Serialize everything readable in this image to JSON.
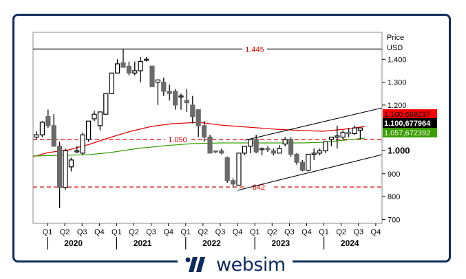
{
  "chart_data": {
    "type": "candlestick",
    "title": "",
    "ylabel": "Price",
    "yunit": "USD",
    "ylim": [
      0.68,
      1.5
    ],
    "y_ticks": [
      {
        "value": 1.4,
        "label": "1.400"
      },
      {
        "value": 1.3,
        "label": "1.300"
      },
      {
        "value": 1.2,
        "label": "1.200"
      },
      {
        "value": 1.0,
        "label": "1.000"
      },
      {
        "value": 0.9,
        "label": "900"
      },
      {
        "value": 0.8,
        "label": "800"
      },
      {
        "value": 0.7,
        "label": "700"
      }
    ],
    "x_quarter_labels": [
      "Q1",
      "Q2",
      "Q3",
      "Q4",
      "Q1",
      "Q2",
      "Q3",
      "Q4",
      "Q1",
      "Q2",
      "Q3",
      "Q4",
      "Q1",
      "Q2",
      "Q3",
      "Q4",
      "Q1",
      "Q2",
      "Q3",
      "Q4"
    ],
    "x_year_labels": [
      "2020",
      "2021",
      "2022",
      "2023",
      "2024"
    ],
    "horizontal_levels": [
      {
        "value": 1.445,
        "label": "1.445",
        "style": "solid",
        "color": "#000000"
      },
      {
        "value": 1.05,
        "label": "1.050",
        "style": "dashed",
        "color": "#e00000"
      },
      {
        "value": 0.842,
        "label": "842",
        "style": "dashed",
        "color": "#e00000"
      }
    ],
    "price_tags": [
      {
        "label": "1.100,689237",
        "bg": "#ff0000",
        "fg": "#000000",
        "value": 1.1007
      },
      {
        "label": "1.100,677964",
        "bg": "#000000",
        "fg": "#ffffff",
        "value": 1.1007
      },
      {
        "label": "1.057,672392",
        "bg": "#3a9e00",
        "fg": "#ffffff",
        "value": 1.0577
      }
    ],
    "series": [
      {
        "name": "Monthly OHLC",
        "type": "candlestick",
        "candles": [
          [
            1.06,
            1.085,
            1.05,
            1.07
          ],
          [
            1.07,
            1.13,
            1.06,
            1.125
          ],
          [
            1.15,
            1.18,
            1.1,
            1.11
          ],
          [
            1.11,
            1.16,
            1.02,
            1.02
          ],
          [
            1.02,
            1.04,
            0.75,
            0.84
          ],
          [
            0.84,
            1.01,
            0.83,
            1.0
          ],
          [
            0.93,
            0.97,
            0.91,
            0.96
          ],
          [
            1.0,
            1.02,
            0.99,
            1.0
          ],
          [
            0.99,
            1.08,
            0.98,
            1.07
          ],
          [
            1.05,
            1.13,
            1.04,
            1.13
          ],
          [
            1.14,
            1.175,
            1.13,
            1.16
          ],
          [
            1.11,
            1.16,
            1.09,
            1.17
          ],
          [
            1.16,
            1.21,
            1.16,
            1.25
          ],
          [
            1.25,
            1.29,
            1.25,
            1.34
          ],
          [
            1.34,
            1.4,
            1.34,
            1.38
          ],
          [
            1.385,
            1.445,
            1.38,
            1.365
          ],
          [
            1.37,
            1.39,
            1.33,
            1.34
          ],
          [
            1.34,
            1.39,
            1.33,
            1.35
          ],
          [
            1.35,
            1.41,
            1.3,
            1.39
          ],
          [
            1.4,
            1.41,
            1.39,
            1.4
          ],
          [
            1.37,
            1.37,
            1.28,
            1.28
          ],
          [
            1.3,
            1.31,
            1.2,
            1.31
          ],
          [
            1.3,
            1.32,
            1.24,
            1.26
          ],
          [
            1.26,
            1.29,
            1.22,
            1.25
          ],
          [
            1.26,
            1.27,
            1.18,
            1.2
          ],
          [
            1.24,
            1.25,
            1.18,
            1.24
          ],
          [
            1.22,
            1.27,
            1.17,
            1.21
          ],
          [
            1.2,
            1.24,
            1.12,
            1.15
          ],
          [
            1.18,
            1.18,
            1.06,
            1.11
          ],
          [
            1.11,
            1.13,
            1.04,
            1.06
          ],
          [
            1.06,
            1.07,
            0.99,
            0.99
          ],
          [
            1.0,
            1.0,
            0.99,
            0.995
          ],
          [
            1.0,
            1.01,
            0.985,
            0.99
          ],
          [
            0.97,
            0.975,
            0.86,
            0.87
          ],
          [
            0.87,
            0.88,
            0.84,
            0.855
          ],
          [
            0.85,
            0.99,
            0.85,
            0.99
          ],
          [
            0.99,
            1.02,
            0.98,
            1.02
          ],
          [
            1.02,
            1.05,
            0.99,
            1.05
          ],
          [
            1.05,
            1.07,
            0.99,
            0.995
          ],
          [
            1.005,
            1.015,
            0.98,
            1.01
          ],
          [
            1.01,
            1.02,
            0.995,
            1.005
          ],
          [
            1.0,
            1.01,
            0.98,
            0.99
          ],
          [
            0.99,
            1.025,
            0.99,
            1.01
          ],
          [
            1.03,
            1.06,
            1.02,
            1.05
          ],
          [
            1.05,
            1.06,
            0.975,
            0.985
          ],
          [
            0.985,
            0.99,
            0.94,
            0.95
          ],
          [
            0.95,
            0.96,
            0.91,
            0.915
          ],
          [
            0.915,
            0.98,
            0.91,
            0.985
          ],
          [
            0.985,
            1.01,
            0.96,
            0.99
          ],
          [
            0.99,
            1.01,
            0.98,
            1.0
          ],
          [
            1.0,
            1.04,
            0.99,
            1.04
          ],
          [
            1.05,
            1.06,
            1.02,
            1.06
          ],
          [
            1.06,
            1.11,
            1.01,
            1.065
          ],
          [
            1.06,
            1.09,
            1.05,
            1.08
          ],
          [
            1.08,
            1.1,
            1.06,
            1.075
          ],
          [
            1.075,
            1.11,
            1.07,
            1.1
          ],
          [
            1.09,
            1.1,
            1.05,
            1.1
          ]
        ]
      },
      {
        "name": "Moving Average (red)",
        "type": "line",
        "color": "#e00000"
      },
      {
        "name": "Moving Average (green)",
        "type": "line",
        "color": "#3a9e00"
      },
      {
        "name": "Upper channel",
        "type": "line",
        "color": "#000000",
        "from": [
          0.842,
          1.06
        ],
        "to": [
          1.2,
          1.2
        ]
      },
      {
        "name": "Lower channel",
        "type": "line",
        "color": "#000000"
      }
    ],
    "grid": false,
    "legend": "none"
  },
  "branding": {
    "logo_text": "websim"
  }
}
